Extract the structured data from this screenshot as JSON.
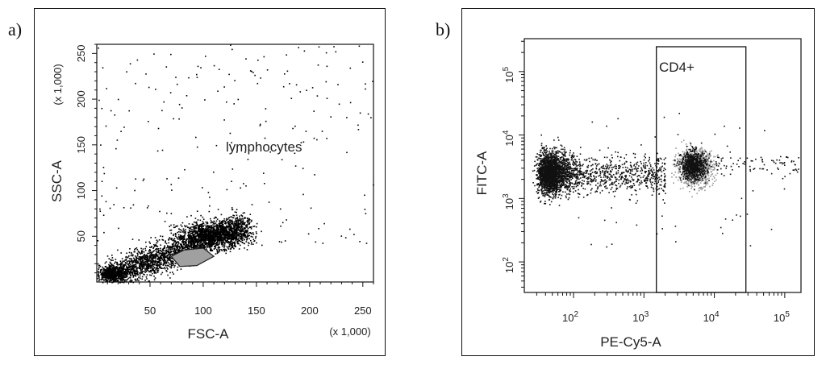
{
  "panels": [
    {
      "label": "a)"
    },
    {
      "label": "b)"
    }
  ],
  "chart_data": [
    {
      "type": "scatter",
      "xlabel": "FSC-A",
      "ylabel": "SSC-A",
      "x_multiplier": "(x 1,000)",
      "y_multiplier": "(x 1,000)",
      "xlim": [
        0,
        260
      ],
      "ylim": [
        0,
        260
      ],
      "x_ticks": [
        "50",
        "100",
        "150",
        "200",
        "250"
      ],
      "y_ticks": [
        "50",
        "100",
        "150",
        "200",
        "250"
      ],
      "gate": {
        "label": "lymphocytes",
        "polygon": [
          [
            70,
            28
          ],
          [
            82,
            35
          ],
          [
            100,
            37
          ],
          [
            110,
            28
          ],
          [
            94,
            18
          ],
          [
            78,
            17
          ]
        ]
      },
      "point_color": "#000000",
      "gate_fill": "#a0a0a0"
    },
    {
      "type": "scatter",
      "xlabel": "PE-Cy5-A",
      "ylabel": "FITC-A",
      "xscale": "log",
      "yscale": "log",
      "x_ticks": [
        "10^2",
        "10^3",
        "10^4",
        "10^5"
      ],
      "y_ticks": [
        "10^2",
        "10^3",
        "10^4",
        "10^5"
      ],
      "gate": {
        "label": "CD4+",
        "x_range": [
          1500,
          28000
        ]
      },
      "point_color": "#111111",
      "highlight_color": "#9a9a9a"
    }
  ]
}
